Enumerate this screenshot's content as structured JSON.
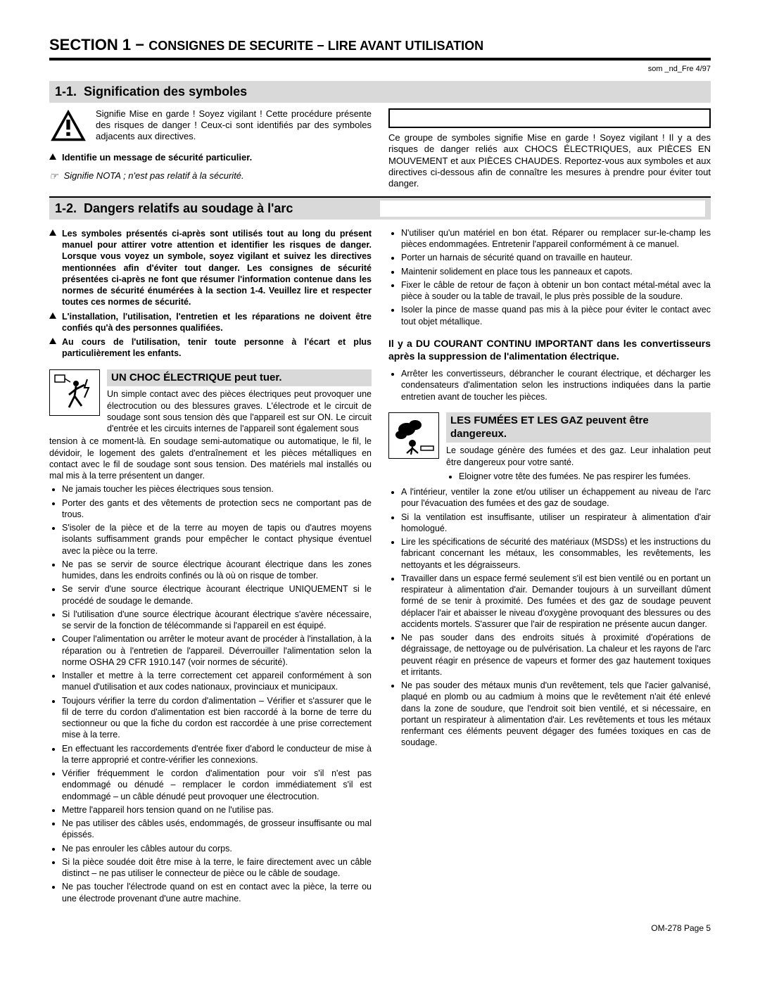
{
  "section": {
    "number": "SECTION 1",
    "dash": "−",
    "title": "CONSIGNES DE SECURITE − LIRE AVANT UTILISATION"
  },
  "som_ref": "som _nd_Fre 4/97",
  "sub11": {
    "num": "1-1.",
    "title": "Signification des symboles"
  },
  "warn_intro": "Signifie Mise en garde ! Soyez vigilant ! Cette procédure présente des risques de danger ! Ceux-ci sont identifiés par des symboles adjacents aux directives.",
  "identifie": "Identifie un message de sécurité particulier.",
  "nota": "Signifie NOTA ; n'est pas relatif à la sécurité.",
  "group_text": "Ce groupe de symboles signifie Mise en garde ! Soyez vigilant ! Il y a des risques de danger reliés aux CHOCS ÉLECTRIQUES, aux PIÈCES EN MOUVEMENT et aux PIÈCES CHAUDES. Reportez-vous aux symboles et aux directives ci-dessous afin de connaître les mesures à prendre pour éviter tout danger.",
  "sub12": {
    "num": "1-2.",
    "title": "Dangers relatifs au soudage à l'arc"
  },
  "tri_items": [
    "Les symboles présentés ci-après sont utilisés tout au long du présent manuel pour attirer votre attention et identifier les risques de danger. Lorsque vous voyez un symbole, soyez vigilant et suivez les directives mentionnées afin d'éviter tout danger. Les consignes de sécurité présentées ci-après ne font que résumer l'information contenue dans les normes de sécurité énumérées à la section 1-4. Veuillez lire et respecter toutes ces normes de sécurité.",
    "L'installation, l'utilisation, l'entretien et les réparations ne doivent être confiés qu'à des personnes qualifiées.",
    "Au cours de l'utilisation, tenir toute personne à l'écart et plus particulièrement les enfants."
  ],
  "shock": {
    "title": "UN CHOC ÉLECTRIQUE peut tuer.",
    "lead": "Un simple contact avec des pièces électriques peut provoquer une électrocution ou des blessures graves. L'électrode et le circuit de soudage sont sous tension dès que l'appareil est sur ON. Le circuit d'entrée et les circuits internes de l'appareil sont également sous",
    "wrap": "tension à ce moment-là. En soudage semi-automatique ou automatique, le fil, le dévidoir, le logement des galets d'entraînement et les pièces métalliques en contact avec le fil de soudage sont sous tension. Des matériels mal installés ou mal mis à la terre présentent un danger.",
    "bullets_left": [
      "Ne jamais toucher les pièces électriques sous tension.",
      "Porter des gants et des vêtements de protection secs ne comportant pas de trous.",
      "S'isoler de la pièce et de la terre au moyen de tapis ou d'autres moyens isolants suffisamment grands pour empêcher le contact physique éventuel avec la pièce ou la terre.",
      "Ne pas se servir de source électrique àcourant électrique dans les zones humides, dans les endroits confinés ou là où on risque de tomber.",
      "Se servir d'une source électrique àcourant électrique UNIQUEMENT si le procédé de soudage le demande.",
      "Si l'utilisation d'une source électrique àcourant électrique s'avère nécessaire, se servir de la fonction de télécommande si l'appareil en est équipé.",
      "Couper l'alimentation ou arrêter le moteur avant de procéder à l'installation, à la réparation ou à l'entretien de l'appareil. Déverrouiller l'alimentation selon la norme OSHA 29 CFR 1910.147 (voir normes de sécurité).",
      "Installer et mettre à la terre correctement cet appareil conformément à son manuel d'utilisation et aux codes nationaux, provinciaux et municipaux.",
      "Toujours vérifier la terre du cordon d'alimentation – Vérifier et s'assurer que le fil de terre du cordon d'alimentation est bien raccordé à la borne de terre du sectionneur ou que la fiche du cordon est raccordée à une prise correctement mise à la terre.",
      "En effectuant les raccordements d'entrée fixer d'abord le conducteur de mise à la terre approprié et contre-vérifier les connexions.",
      "Vérifier fréquemment le cordon d'alimentation pour voir s'il n'est pas endommagé ou dénudé – remplacer le cordon immédiatement s'il est endommagé – un câble dénudé peut provoquer une électrocution.",
      "Mettre l'appareil hors tension quand on ne l'utilise pas.",
      "Ne pas utiliser des câbles usés, endommagés, de grosseur insuffisante ou mal épissés.",
      "Ne pas enrouler les câbles autour du corps.",
      "Si la pièce soudée doit être mise à la terre, le faire directement avec un câble distinct – ne pas utiliser le connecteur de pièce ou le câble de soudage.",
      "Ne pas toucher l'électrode quand on est en contact avec la pièce, la terre ou une électrode provenant d'une autre machine."
    ]
  },
  "right_top_bullets": [
    "N'utiliser qu'un matériel en bon état. Réparer ou remplacer sur-le-champ les pièces endommagées. Entretenir l'appareil conformément à ce manuel.",
    "Porter un harnais de sécurité quand on travaille en hauteur.",
    "Maintenir solidement en place tous les panneaux et capots.",
    "Fixer le câble de retour de façon à obtenir un bon contact métal-métal avec la pièce à souder ou la table de travail, le plus près possible de la soudure.",
    "Isoler la pince de masse quand pas mis à la pièce pour éviter le contact avec tout objet métallique."
  ],
  "dc_para": "Il y a DU COURANT CONTINU IMPORTANT dans les convertisseurs après la suppression de l'alimentation électrique.",
  "dc_bullet": "Arrêter les convertisseurs, débrancher le courant électrique, et décharger les condensateurs d'alimentation selon les instructions indiquées dans la partie entretien avant de toucher les pièces.",
  "fumes": {
    "title": "LES FUMÉES ET LES GAZ peuvent être dangereux.",
    "lead": "Le soudage génère des fumées et des gaz. Leur inhalation peut être dangereux pour votre santé.",
    "sub_bullet": "Eloigner votre tête des fumées. Ne pas respirer les fumées.",
    "bullets": [
      "A l'intérieur, ventiler la zone et/ou utiliser un échappement au niveau de l'arc pour l'évacuation des fumées et des gaz de soudage.",
      "Si la ventilation est insuffisante, utiliser un respirateur à alimentation d'air homologué.",
      "Lire les spécifications de sécurité des matériaux (MSDSs) et les instructions du fabricant concernant les métaux, les consommables, les revêtements, les nettoyants et les dégraisseurs.",
      "Travailler dans un espace fermé seulement s'il est bien ventilé ou en portant un respirateur à alimentation d'air. Demander toujours à un surveillant dûment formé de se tenir à proximité. Des fumées et des gaz de soudage peuvent déplacer l'air et abaisser le niveau d'oxygène provoquant des blessures ou des accidents mortels. S'assurer que l'air de respiration ne présente aucun danger.",
      "Ne pas souder dans des endroits situés à proximité d'opérations de dégraissage, de nettoyage ou de pulvérisation. La chaleur et les rayons de l'arc peuvent réagir en présence de vapeurs et former des gaz hautement toxiques et irritants.",
      "Ne pas souder des métaux munis d'un revêtement, tels que l'acier galvanisé, plaqué en plomb ou au cadmium à moins que le revêtement n'ait été enlevé dans la zone de soudure, que l'endroit soit bien ventilé, et si nécessaire, en portant un respirateur à alimentation d'air. Les revêtements et tous les métaux renfermant ces éléments peuvent dégager des fumées toxiques en cas de soudage."
    ]
  },
  "footer": "OM-278 Page 5"
}
